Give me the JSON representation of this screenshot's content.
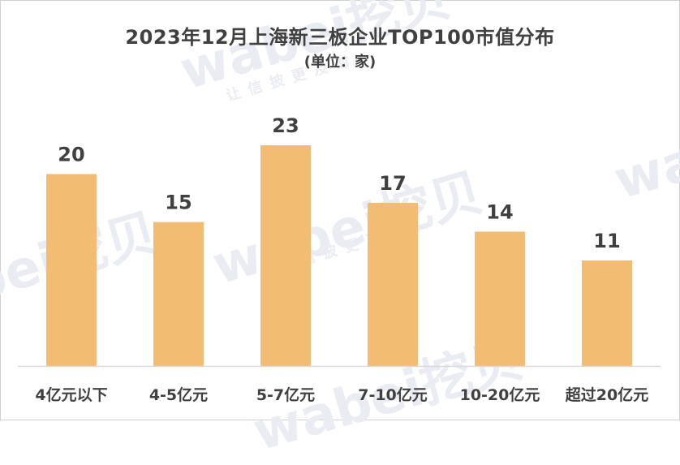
{
  "chart_data": {
    "type": "bar",
    "title": "2023年12月上海新三板企业TOP100市值分布",
    "subtitle": "(单位：家)",
    "categories": [
      "4亿元以下",
      "4-5亿元",
      "5-7亿元",
      "7-10亿元",
      "10-20亿元",
      "超过20亿元"
    ],
    "values": [
      20,
      15,
      23,
      17,
      14,
      11
    ],
    "ylim": [
      0,
      23
    ],
    "grid": false,
    "legend": "none",
    "bar_color": "#f2bc72",
    "axis_color": "#d9d9d9"
  },
  "watermark": {
    "logo_text": "wabei挖贝",
    "slogan": "让信披更及时"
  }
}
